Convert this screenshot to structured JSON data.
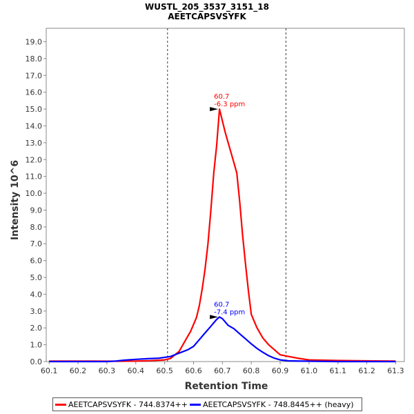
{
  "chart_data": {
    "type": "line",
    "title": "WUSTL_205_3537_3151_18",
    "subtitle": "AEETCAPSVSYFK",
    "xlabel": "Retention Time",
    "ylabel": "Intensity 10^6",
    "xlim": [
      60.09,
      61.33
    ],
    "ylim": [
      0,
      19.8
    ],
    "x_ticks": [
      "60.1",
      "60.2",
      "60.3",
      "60.4",
      "60.5",
      "60.6",
      "60.7",
      "60.8",
      "60.9",
      "61.0",
      "61.1",
      "61.2",
      "61.3"
    ],
    "y_ticks": [
      "0.0",
      "1.0",
      "2.0",
      "3.0",
      "4.0",
      "5.0",
      "6.0",
      "7.0",
      "8.0",
      "9.0",
      "10.0",
      "11.0",
      "12.0",
      "13.0",
      "14.0",
      "15.0",
      "16.0",
      "17.0",
      "18.0",
      "19.0"
    ],
    "integration_boundaries": [
      60.51,
      60.92
    ],
    "series": [
      {
        "name": "AEETCAPSVSYFK - 744.8374++",
        "color": "#ff0000",
        "points": [
          [
            60.1,
            0.03
          ],
          [
            60.2,
            0.03
          ],
          [
            60.25,
            0.03
          ],
          [
            60.3,
            0.02
          ],
          [
            60.35,
            0.02
          ],
          [
            60.4,
            0.03
          ],
          [
            60.45,
            0.05
          ],
          [
            60.5,
            0.1
          ],
          [
            60.52,
            0.18
          ],
          [
            60.55,
            0.6
          ],
          [
            60.57,
            1.2
          ],
          [
            60.59,
            1.8
          ],
          [
            60.61,
            2.6
          ],
          [
            60.62,
            3.3
          ],
          [
            60.63,
            4.3
          ],
          [
            60.64,
            5.5
          ],
          [
            60.65,
            7.0
          ],
          [
            60.66,
            9.0
          ],
          [
            60.67,
            11.2
          ],
          [
            60.68,
            12.8
          ],
          [
            60.69,
            15.0
          ],
          [
            60.7,
            14.3
          ],
          [
            60.71,
            13.6
          ],
          [
            60.72,
            13.0
          ],
          [
            60.73,
            12.4
          ],
          [
            60.74,
            11.8
          ],
          [
            60.75,
            11.2
          ],
          [
            60.76,
            9.5
          ],
          [
            60.77,
            7.5
          ],
          [
            60.78,
            5.8
          ],
          [
            60.79,
            4.2
          ],
          [
            60.8,
            2.8
          ],
          [
            60.82,
            2.0
          ],
          [
            60.84,
            1.4
          ],
          [
            60.86,
            1.0
          ],
          [
            60.88,
            0.7
          ],
          [
            60.9,
            0.4
          ],
          [
            60.93,
            0.3
          ],
          [
            60.96,
            0.2
          ],
          [
            61.0,
            0.1
          ],
          [
            61.1,
            0.06
          ],
          [
            61.2,
            0.04
          ],
          [
            61.3,
            0.03
          ]
        ]
      },
      {
        "name": "AEETCAPSVSYFK - 748.8445++ (heavy)",
        "color": "#0000ff",
        "points": [
          [
            60.1,
            0.0
          ],
          [
            60.2,
            0.0
          ],
          [
            60.3,
            0.0
          ],
          [
            60.33,
            0.03
          ],
          [
            60.36,
            0.08
          ],
          [
            60.4,
            0.13
          ],
          [
            60.44,
            0.17
          ],
          [
            60.48,
            0.2
          ],
          [
            60.52,
            0.3
          ],
          [
            60.55,
            0.5
          ],
          [
            60.58,
            0.7
          ],
          [
            60.6,
            0.9
          ],
          [
            60.62,
            1.3
          ],
          [
            60.64,
            1.7
          ],
          [
            60.66,
            2.1
          ],
          [
            60.68,
            2.5
          ],
          [
            60.69,
            2.65
          ],
          [
            60.7,
            2.55
          ],
          [
            60.71,
            2.35
          ],
          [
            60.72,
            2.15
          ],
          [
            60.74,
            1.95
          ],
          [
            60.76,
            1.65
          ],
          [
            60.78,
            1.35
          ],
          [
            60.8,
            1.05
          ],
          [
            60.82,
            0.78
          ],
          [
            60.84,
            0.55
          ],
          [
            60.86,
            0.35
          ],
          [
            60.88,
            0.2
          ],
          [
            60.9,
            0.1
          ],
          [
            60.93,
            0.04
          ],
          [
            61.0,
            0.02
          ],
          [
            61.1,
            0.0
          ],
          [
            61.2,
            0.0
          ],
          [
            61.3,
            0.0
          ]
        ]
      }
    ],
    "annotations": [
      {
        "series": 0,
        "x": 60.69,
        "y": 15.0,
        "line1": "60.7",
        "line2": "-6.3 ppm",
        "color": "#ff0000"
      },
      {
        "series": 1,
        "x": 60.69,
        "y": 2.65,
        "line1": "60.7",
        "line2": "-7.4 ppm",
        "color": "#0000ff"
      }
    ],
    "legend_position": "bottom"
  }
}
